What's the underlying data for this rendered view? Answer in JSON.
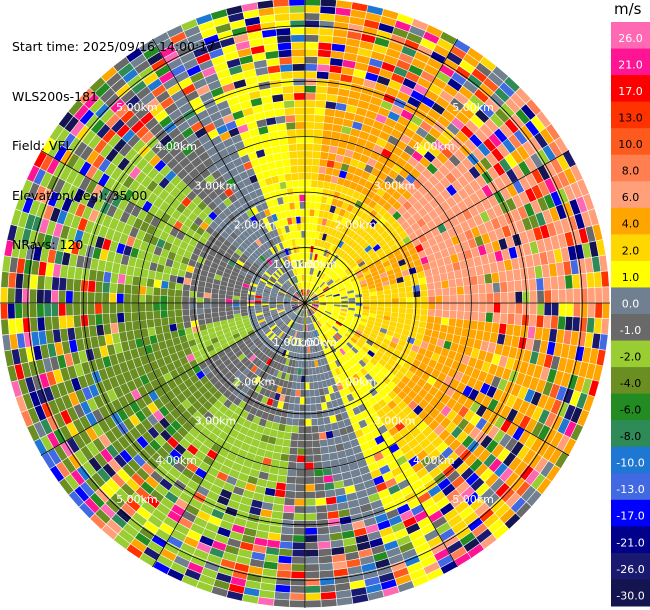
{
  "header": {
    "start_time": "Start time: 2025/09/16 14:00:17",
    "instrument": "WLS200s-181",
    "field": "Field: VEL",
    "elevation": "Elevation(deg): 35.00",
    "nrays": "NRays: 120"
  },
  "chart_data": {
    "type": "heatmap",
    "projection": "polar-ppi",
    "field": "VEL",
    "elevation_deg": 35.0,
    "n_rays": 120,
    "max_range_km": 5.5,
    "range_ring_labels": [
      "1.00km",
      "2.00km",
      "3.00km",
      "4.00km",
      "5.00km"
    ],
    "colorbar": {
      "unit": "m/s",
      "tick_labels": [
        "26.0",
        "21.0",
        "17.0",
        "13.0",
        "10.0",
        "8.0",
        "6.0",
        "4.0",
        "2.0",
        "1.0",
        "0.0",
        "-1.0",
        "-2.0",
        "-4.0",
        "-6.0",
        "-8.0",
        "-10.0",
        "-13.0",
        "-17.0",
        "-21.0",
        "-26.0",
        "-30.0"
      ],
      "colors": [
        "#ff69b4",
        "#ff1493",
        "#ff0000",
        "#ff3300",
        "#ff5a1e",
        "#ff7f50",
        "#ffa07a",
        "#ffa500",
        "#ffd700",
        "#ffff00",
        "#708090",
        "#696969",
        "#9acd32",
        "#6b8e23",
        "#228b22",
        "#2e8b57",
        "#1f77d4",
        "#4169e1",
        "#0000ff",
        "#00008b",
        "#191970",
        "#141450"
      ]
    },
    "regions": [
      {
        "from_deg": 0,
        "to_deg": 45,
        "description": "mostly positive (yellow/orange)"
      },
      {
        "from_deg": 45,
        "to_deg": 135,
        "description": "positive 2-6 m/s"
      },
      {
        "from_deg": 135,
        "to_deg": 180,
        "description": "mixed near zero"
      },
      {
        "from_deg": 180,
        "to_deg": 270,
        "description": "negative (green/blue)"
      },
      {
        "from_deg": 270,
        "to_deg": 330,
        "description": "negative -2 to -8 m/s"
      },
      {
        "from_deg": 330,
        "to_deg": 360,
        "description": "near zero (gray)"
      }
    ]
  }
}
